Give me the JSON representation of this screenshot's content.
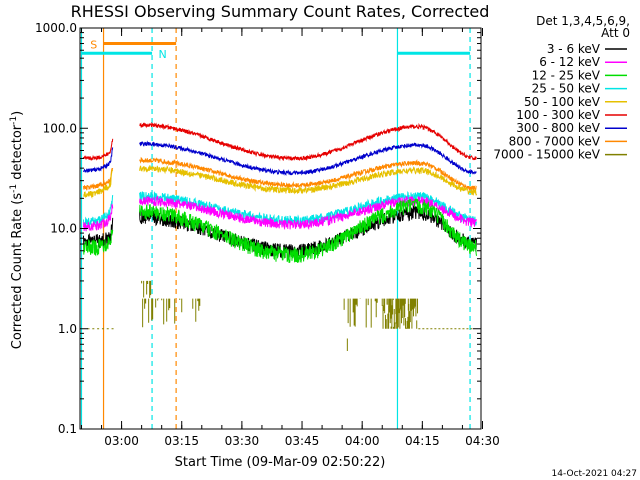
{
  "chart_data": {
    "type": "line",
    "title": "RHESSI Observing Summary Count Rates, Corrected",
    "xlabel": "Start Time (09-Mar-09 02:50:22)",
    "ylabel_main": "Corrected Count Rate (s",
    "ylabel_sup1": "-1",
    "ylabel_mid": " detector",
    "ylabel_sup2": "-1",
    "ylabel_end": ")",
    "yscale": "log",
    "ylim": [
      0.1,
      1000
    ],
    "xlim_minutes": [
      -0.37,
      99.63
    ],
    "y_ticks": [
      {
        "v": 0.1,
        "label": "0.1"
      },
      {
        "v": 1,
        "label": "1.0"
      },
      {
        "v": 10,
        "label": "10.0"
      },
      {
        "v": 100,
        "label": "100.0"
      },
      {
        "v": 1000,
        "label": "1000.0"
      }
    ],
    "x_ticks": [
      {
        "m": 10,
        "label": "03:00"
      },
      {
        "m": 25,
        "label": "03:15"
      },
      {
        "m": 40,
        "label": "03:30"
      },
      {
        "m": 55,
        "label": "03:45"
      },
      {
        "m": 70,
        "label": "04:00"
      },
      {
        "m": 85,
        "label": "04:15"
      },
      {
        "m": 100,
        "label": "04:30"
      }
    ],
    "legend_header": [
      "Det 1,3,4,5,6,9,",
      "Att 0"
    ],
    "legend_position": "right",
    "series": [
      {
        "name": "3 - 6 keV",
        "color": "#000000",
        "a": 7.5,
        "b": 8.5,
        "c": 13.0,
        "d": 6.0,
        "e": 14.5,
        "f": 7.0,
        "noise": 0.09
      },
      {
        "name": "6 - 12 keV",
        "color": "#ff00ff",
        "a": 10.5,
        "b": 13.5,
        "c": 19.0,
        "d": 11.0,
        "e": 19.0,
        "f": 11.5,
        "noise": 0.06
      },
      {
        "name": "12 - 25 keV",
        "color": "#00dd00",
        "a": 6.5,
        "b": 8.0,
        "c": 15.0,
        "d": 5.5,
        "e": 17.0,
        "f": 6.5,
        "noise": 0.1
      },
      {
        "name": "25 - 50 keV",
        "color": "#00e5e5",
        "a": 11.5,
        "b": 16.0,
        "c": 21.0,
        "d": 12.0,
        "e": 21.0,
        "f": 12.0,
        "noise": 0.06
      },
      {
        "name": "50 - 100 keV",
        "color": "#e6c000",
        "a": 22.0,
        "b": 30.0,
        "c": 40.0,
        "d": 24.0,
        "e": 38.0,
        "f": 23.0,
        "noise": 0.04
      },
      {
        "name": "100 - 300 keV",
        "color": "#e60000",
        "a": 50.0,
        "b": 60.0,
        "c": 108.0,
        "d": 50.0,
        "e": 104.0,
        "f": 50.0,
        "noise": 0.025
      },
      {
        "name": "300 - 800 keV",
        "color": "#0000cc",
        "a": 38.0,
        "b": 48.0,
        "c": 70.0,
        "d": 36.0,
        "e": 68.0,
        "f": 36.0,
        "noise": 0.025
      },
      {
        "name": "800 - 7000 keV",
        "color": "#ff8800",
        "a": 26.0,
        "b": 32.0,
        "c": 48.0,
        "d": 27.0,
        "e": 45.0,
        "f": 25.0,
        "noise": 0.03
      },
      {
        "name": "7000 - 15000 keV",
        "color": "#808000",
        "a": 1.0,
        "b": 1.0,
        "c": 3.0,
        "d": 1.0,
        "e": 2.0,
        "f": 1.0,
        "noise": 0
      }
    ],
    "annotations": {
      "s_label": "S",
      "n_label": "N"
    },
    "timestamp": "14-Oct-2021 04:27"
  }
}
